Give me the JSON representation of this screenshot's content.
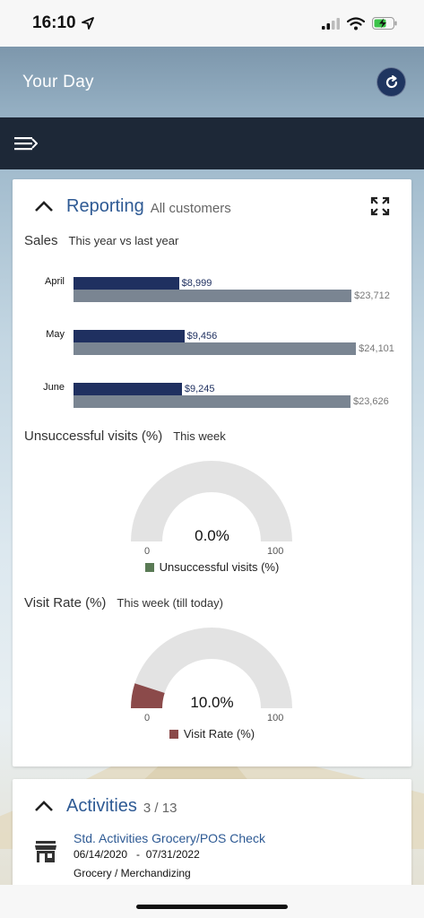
{
  "status": {
    "time": "16:10"
  },
  "header": {
    "title": "Your Day"
  },
  "reporting": {
    "title": "Reporting",
    "subtitle": "All customers",
    "sales": {
      "title": "Sales",
      "subtitle": "This year vs last year"
    },
    "unsuccessful": {
      "title": "Unsuccessful visits (%)",
      "subtitle": "This week",
      "legend": "Unsuccessful visits (%)",
      "display": "0.0%",
      "min": "0",
      "max": "100"
    },
    "visit_rate": {
      "title": "Visit Rate (%)",
      "subtitle": "This week (till today)",
      "legend": "Visit Rate (%)",
      "display": "10.0%",
      "min": "0",
      "max": "100"
    }
  },
  "activities": {
    "title": "Activities",
    "count": "3 / 13",
    "item": {
      "name": "Std. Activities Grocery/POS Check",
      "dates": "06/14/2020   -  07/31/2022",
      "category": "Grocery / Merchandizing"
    }
  },
  "colors": {
    "current_bar": "#1f3060",
    "previous_bar": "#7a8592",
    "gauge_track": "#e3e3e3",
    "unsuccessful": "#5a7a55",
    "visit_rate": "#8b4a4a",
    "accent": "#2e5a94"
  },
  "chart_data": [
    {
      "type": "bar",
      "orientation": "horizontal",
      "title": "Sales",
      "subtitle": "This year vs last year",
      "categories": [
        "April",
        "May",
        "June"
      ],
      "series": [
        {
          "values": [
            8999,
            9456,
            9245
          ],
          "labels": [
            "$8,999",
            "$9,456",
            "$9,245"
          ]
        },
        {
          "values": [
            23712,
            24101,
            23626
          ],
          "labels": [
            "$23,712",
            "$24,101",
            "$23,626"
          ]
        }
      ],
      "xlim": [
        0,
        26000
      ]
    },
    {
      "type": "gauge",
      "title": "Unsuccessful visits (%)",
      "value": 0.0,
      "range": [
        0,
        100
      ]
    },
    {
      "type": "gauge",
      "title": "Visit Rate (%)",
      "value": 10.0,
      "range": [
        0,
        100
      ]
    }
  ]
}
